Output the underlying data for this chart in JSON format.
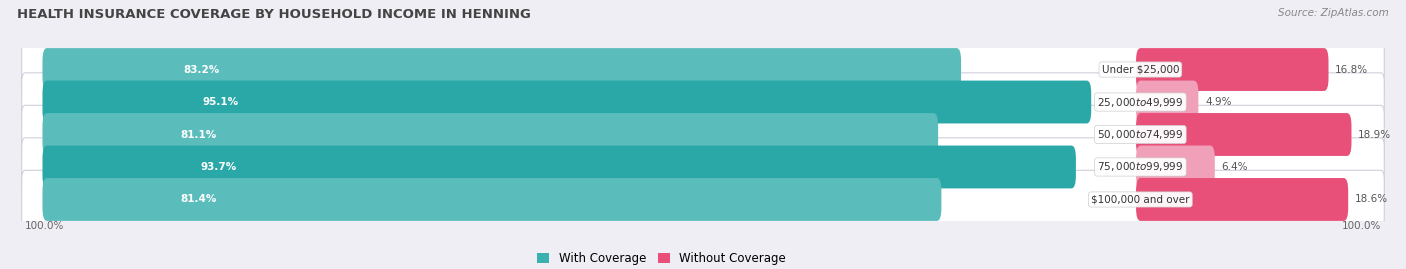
{
  "title": "HEALTH INSURANCE COVERAGE BY HOUSEHOLD INCOME IN HENNING",
  "source": "Source: ZipAtlas.com",
  "categories": [
    "Under $25,000",
    "$25,000 to $49,999",
    "$50,000 to $74,999",
    "$75,000 to $99,999",
    "$100,000 and over"
  ],
  "with_coverage": [
    83.2,
    95.1,
    81.1,
    93.7,
    81.4
  ],
  "without_coverage": [
    16.8,
    4.9,
    18.9,
    6.4,
    18.6
  ],
  "coverage_colors": [
    "#5bbcbc",
    "#2aa8a8",
    "#5bbcbc",
    "#2aa8a8",
    "#5bbcbc"
  ],
  "no_coverage_colors": [
    "#e8507a",
    "#f0a0b8",
    "#e8507a",
    "#f0a0b8",
    "#e8507a"
  ],
  "bar_height": 0.52,
  "background_color": "#eeeef4",
  "legend_coverage_color": "#3ab0b0",
  "legend_no_coverage_color": "#e8507a",
  "axis_label_left": "100.0%",
  "axis_label_right": "100.0%"
}
